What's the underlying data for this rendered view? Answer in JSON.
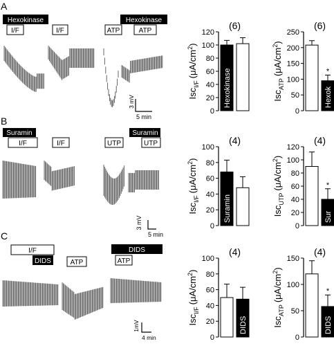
{
  "panels": [
    {
      "letter": "A",
      "black_bars": [
        "Hexokinase",
        "Hexokinase"
      ],
      "stim_boxes": [
        "I/F",
        "I/F",
        "ATP",
        "ATP"
      ],
      "scale": {
        "voltage": "3 mV",
        "time": "5 min"
      }
    },
    {
      "letter": "B",
      "black_bars": [
        "Suramin",
        "Suramin"
      ],
      "stim_boxes": [
        "I/F",
        "I/F",
        "UTP",
        "UTP"
      ],
      "scale": {
        "voltage": "3 mV",
        "time": "5 min"
      }
    },
    {
      "letter": "C",
      "black_bars": [
        "DIDS",
        "DIDS"
      ],
      "stim_boxes": [
        "I/F",
        "ATP",
        "ATP"
      ],
      "scale": {
        "voltage": "1mV",
        "time": "4 min"
      }
    }
  ],
  "chart_data": [
    {
      "type": "bar",
      "panel": "A",
      "ylabel": "Isc I/F (μA/cm²)",
      "ylabel_main": "Isc",
      "ylabel_sub": "I/F",
      "ylabel_unit": "(μA/cm",
      "ylabel_sup": "2",
      "ylabel_end": ")",
      "ylim": [
        0,
        120
      ],
      "yticks": [
        "0",
        "20",
        "40",
        "60",
        "80",
        "100",
        "120"
      ],
      "n_label": "(6)",
      "bars": [
        {
          "value": 100,
          "error": 7,
          "fill": "#000000",
          "label": "Hexokinase"
        },
        {
          "value": 102,
          "error": 9,
          "fill": "#ffffff",
          "label": ""
        }
      ],
      "significance": ""
    },
    {
      "type": "bar",
      "panel": "A",
      "ylabel": "Isc ATP (μA/cm²)",
      "ylabel_main": "Isc",
      "ylabel_sub": "ATP",
      "ylabel_unit": "(μA/cm",
      "ylabel_sup": "2",
      "ylabel_end": ")",
      "ylim": [
        0,
        250
      ],
      "yticks": [
        "0",
        "50",
        "100",
        "150",
        "200",
        "250"
      ],
      "n_label": "(6)",
      "bars": [
        {
          "value": 208,
          "error": 14,
          "fill": "#ffffff",
          "label": ""
        },
        {
          "value": 95,
          "error": 18,
          "fill": "#000000",
          "label": "Hexok"
        }
      ],
      "significance": "*"
    },
    {
      "type": "bar",
      "panel": "B",
      "ylabel": "Isc I/F (μA/cm²)",
      "ylabel_main": "Isc",
      "ylabel_sub": "I/F",
      "ylabel_unit": "(μA/cm",
      "ylabel_sup": "2",
      "ylabel_end": ")",
      "ylim": [
        0,
        100
      ],
      "yticks": [
        "0",
        "20",
        "40",
        "60",
        "80",
        "100"
      ],
      "n_label": "(4)",
      "bars": [
        {
          "value": 68,
          "error": 15,
          "fill": "#000000",
          "label": "Suramin"
        },
        {
          "value": 48,
          "error": 14,
          "fill": "#ffffff",
          "label": ""
        }
      ],
      "significance": ""
    },
    {
      "type": "bar",
      "panel": "B",
      "ylabel": "Isc UTP (μA/cm²)",
      "ylabel_main": "Isc",
      "ylabel_sub": "UTP",
      "ylabel_unit": "(μA/cm",
      "ylabel_sup": "2",
      "ylabel_end": ")",
      "ylim": [
        0,
        120
      ],
      "yticks": [
        "0",
        "20",
        "40",
        "60",
        "80",
        "100",
        "120"
      ],
      "n_label": "(4)",
      "bars": [
        {
          "value": 90,
          "error": 22,
          "fill": "#ffffff",
          "label": ""
        },
        {
          "value": 40,
          "error": 16,
          "fill": "#000000",
          "label": "Sur"
        }
      ],
      "significance": "*"
    },
    {
      "type": "bar",
      "panel": "C",
      "ylabel": "Isc I/F (μA/cm²)",
      "ylabel_main": "Isc",
      "ylabel_sub": "I/F",
      "ylabel_unit": "(μA/cm",
      "ylabel_sup": "2",
      "ylabel_end": ")",
      "ylim": [
        0,
        100
      ],
      "yticks": [
        "0",
        "20",
        "40",
        "60",
        "80",
        "100"
      ],
      "n_label": "(4)",
      "bars": [
        {
          "value": 50,
          "error": 17,
          "fill": "#ffffff",
          "label": ""
        },
        {
          "value": 48,
          "error": 15,
          "fill": "#000000",
          "label": "DIDS"
        }
      ],
      "significance": ""
    },
    {
      "type": "bar",
      "panel": "C",
      "ylabel": "Isc ATP (μA/cm²)",
      "ylabel_main": "Isc",
      "ylabel_sub": "ATP",
      "ylabel_unit": "(μA/cm",
      "ylabel_sup": "2",
      "ylabel_end": ")",
      "ylim": [
        0,
        150
      ],
      "yticks": [
        "0",
        "50",
        "100",
        "150"
      ],
      "n_label": "(4)",
      "bars": [
        {
          "value": 120,
          "error": 25,
          "fill": "#ffffff",
          "label": ""
        },
        {
          "value": 58,
          "error": 22,
          "fill": "#000000",
          "label": "DIDS"
        }
      ],
      "significance": "*"
    }
  ]
}
